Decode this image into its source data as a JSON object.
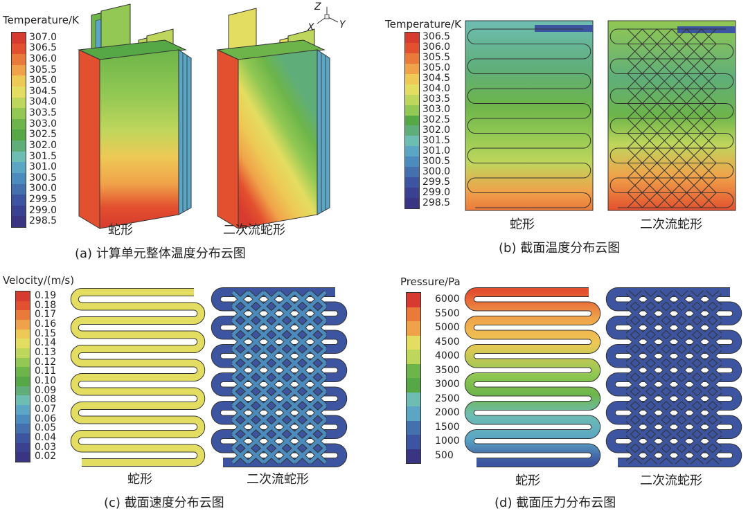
{
  "panels": {
    "a": {
      "legend_title": "Temperature/K",
      "ticks": [
        "307.0",
        "306.5",
        "306.0",
        "305.5",
        "305.0",
        "304.5",
        "304.0",
        "303.5",
        "303.0",
        "302.5",
        "302.0",
        "301.5",
        "301.0",
        "300.5",
        "300.0",
        "299.5",
        "299.0",
        "298.5"
      ],
      "label_left": "蛇形",
      "label_right": "二次流蛇形",
      "caption_tag": "(a)",
      "caption": "计算单元整体温度分布云图",
      "axes": {
        "z": "Z",
        "x": "X",
        "y": "Y"
      }
    },
    "b": {
      "legend_title": "Temperature/K",
      "ticks": [
        "306.5",
        "306.0",
        "305.5",
        "305.0",
        "304.5",
        "304.0",
        "303.5",
        "303.0",
        "302.5",
        "302.0",
        "301.5",
        "301.0",
        "300.5",
        "300.0",
        "299.5",
        "299.0",
        "298.5"
      ],
      "label_left": "蛇形",
      "label_right": "二次流蛇形",
      "caption_tag": "(b)",
      "caption": "截面温度分布云图"
    },
    "c": {
      "legend_title": "Velocity/(m/s)",
      "ticks": [
        "0.19",
        "0.18",
        "0.17",
        "0.16",
        "0.15",
        "0.14",
        "0.13",
        "0.12",
        "0.11",
        "0.10",
        "0.09",
        "0.08",
        "0.07",
        "0.06",
        "0.05",
        "0.04",
        "0.03",
        "0.02"
      ],
      "label_left": "蛇形",
      "label_right": "二次流蛇形",
      "caption_tag": "(c)",
      "caption": "截面速度分布云图"
    },
    "d": {
      "legend_title": "Pressure/Pa",
      "ticks": [
        "6000",
        "5500",
        "5000",
        "4500",
        "4000",
        "3500",
        "3000",
        "2500",
        "2000",
        "1500",
        "1000",
        "500"
      ],
      "label_left": "蛇形",
      "label_right": "二次流蛇形",
      "caption_tag": "(d)",
      "caption": "截面压力分布云图"
    }
  },
  "colors": {
    "scale": [
      "#d73a2e",
      "#e3502f",
      "#ea7a3a",
      "#f0a24a",
      "#eec955",
      "#e3dd61",
      "#bfd65c",
      "#92c853",
      "#6db54a",
      "#55a845",
      "#5fae7a",
      "#6ebdb2",
      "#5aa6c4",
      "#4b8bbd",
      "#4470ad",
      "#3d55a0",
      "#3b4191",
      "#3a3583"
    ]
  }
}
